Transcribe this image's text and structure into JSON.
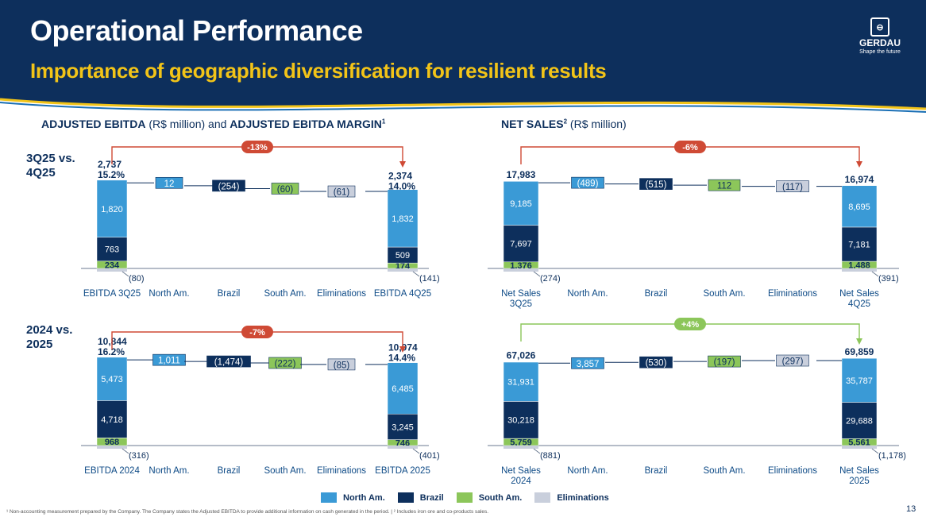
{
  "header": {
    "title": "Operational Performance",
    "subtitle": "Importance of geographic diversification for resilient results",
    "logo_name": "GERDAU",
    "logo_tagline": "Shape the future"
  },
  "sections": {
    "ebitda_title_bold1": "ADJUSTED EBITDA",
    "ebitda_title_unit": " (R$ million) ",
    "ebitda_title_and": "and ",
    "ebitda_title_bold2": "ADJUSTED EBITDA MARGIN",
    "ebitda_title_sup": "1",
    "sales_title_bold": "NET SALES",
    "sales_title_sup": "2",
    "sales_title_unit": " (R$ million)"
  },
  "rows": {
    "row1_label": "3Q25 vs.\n4Q25",
    "row2_label": "2024 vs.\n2025"
  },
  "colors": {
    "north_am": "#3a9ad6",
    "brazil": "#0d2f5c",
    "south_am": "#8cc65a",
    "eliminations": "#c9cfdc",
    "negative_badge": "#cf4a35",
    "positive_badge": "#8cc65a",
    "navy": "#0d2f5c"
  },
  "legend": [
    {
      "label": "North Am.",
      "color": "#3a9ad6"
    },
    {
      "label": "Brazil",
      "color": "#0d2f5c"
    },
    {
      "label": "South Am.",
      "color": "#8cc65a"
    },
    {
      "label": "Eliminations",
      "color": "#c9cfdc"
    }
  ],
  "chart_data": [
    {
      "type": "waterfall",
      "id": "ebitda_q",
      "title": "ADJUSTED EBITDA (R$ million) and ADJUSTED EBITDA MARGIN — 3Q25 vs. 4Q25",
      "categories": [
        "EBITDA 3Q25",
        "North Am.",
        "Brazil",
        "South Am.",
        "Eliminations",
        "EBITDA 4Q25"
      ],
      "start": {
        "total": 2737,
        "margin": "15.2%",
        "north_am": 1820,
        "brazil": 763,
        "south_am": 234,
        "eliminations": -80
      },
      "steps": [
        {
          "category": "North Am.",
          "value": 12,
          "label": "12",
          "series": "north_am"
        },
        {
          "category": "Brazil",
          "value": -254,
          "label": "(254)",
          "series": "brazil"
        },
        {
          "category": "South Am.",
          "value": -60,
          "label": "(60)",
          "series": "south_am"
        },
        {
          "category": "Eliminations",
          "value": -61,
          "label": "(61)",
          "series": "eliminations"
        }
      ],
      "end": {
        "total": 2374,
        "margin": "14.0%",
        "north_am": 1832,
        "brazil": 509,
        "south_am": 174,
        "eliminations": -141
      },
      "start_labels": {
        "total": "2,737",
        "north_am": "1,820",
        "brazil": "763",
        "south_am": "234",
        "eliminations": "(80)"
      },
      "end_labels": {
        "total": "2,374",
        "north_am": "1,832",
        "brazil": "509",
        "south_am": "174",
        "eliminations": "(141)"
      },
      "change": "-13%",
      "change_sign": "neg"
    },
    {
      "type": "waterfall",
      "id": "ebitda_y",
      "title": "ADJUSTED EBITDA (R$ million) and ADJUSTED EBITDA MARGIN — 2024 vs. 2025",
      "categories": [
        "EBITDA 2024",
        "North Am.",
        "Brazil",
        "South Am.",
        "Eliminations",
        "EBITDA 2025"
      ],
      "start": {
        "total": 10844,
        "margin": "16.2%",
        "north_am": 5473,
        "brazil": 4718,
        "south_am": 968,
        "eliminations": -316
      },
      "steps": [
        {
          "category": "North Am.",
          "value": 1011,
          "label": "1,011",
          "series": "north_am"
        },
        {
          "category": "Brazil",
          "value": -1474,
          "label": "(1,474)",
          "series": "brazil"
        },
        {
          "category": "South Am.",
          "value": -222,
          "label": "(222)",
          "series": "south_am"
        },
        {
          "category": "Eliminations",
          "value": -85,
          "label": "(85)",
          "series": "eliminations"
        }
      ],
      "end": {
        "total": 10074,
        "margin": "14.4%",
        "north_am": 6485,
        "brazil": 3245,
        "south_am": 746,
        "eliminations": -401
      },
      "start_labels": {
        "total": "10,844",
        "north_am": "5,473",
        "brazil": "4,718",
        "south_am": "968",
        "eliminations": "(316)"
      },
      "end_labels": {
        "total": "10,074",
        "north_am": "6,485",
        "brazil": "3,245",
        "south_am": "746",
        "eliminations": "(401)"
      },
      "change": "-7%",
      "change_sign": "neg"
    },
    {
      "type": "waterfall",
      "id": "sales_q",
      "title": "NET SALES (R$ million) — 3Q25 vs. 4Q25",
      "categories": [
        "Net Sales 3Q25",
        "North Am.",
        "Brazil",
        "South Am.",
        "Eliminations",
        "Net Sales 4Q25"
      ],
      "start": {
        "total": 17983,
        "margin": "",
        "north_am": 9185,
        "brazil": 7697,
        "south_am": 1376,
        "eliminations": -274
      },
      "steps": [
        {
          "category": "North Am.",
          "value": -489,
          "label": "(489)",
          "series": "north_am"
        },
        {
          "category": "Brazil",
          "value": -515,
          "label": "(515)",
          "series": "brazil"
        },
        {
          "category": "South Am.",
          "value": 112,
          "label": "112",
          "series": "south_am"
        },
        {
          "category": "Eliminations",
          "value": -117,
          "label": "(117)",
          "series": "eliminations"
        }
      ],
      "end": {
        "total": 16974,
        "margin": "",
        "north_am": 8695,
        "brazil": 7181,
        "south_am": 1488,
        "eliminations": -391
      },
      "start_labels": {
        "total": "17,983",
        "north_am": "9,185",
        "brazil": "7,697",
        "south_am": "1,376",
        "eliminations": "(274)"
      },
      "end_labels": {
        "total": "16,974",
        "north_am": "8,695",
        "brazil": "7,181",
        "south_am": "1,488",
        "eliminations": "(391)"
      },
      "change": "-6%",
      "change_sign": "neg"
    },
    {
      "type": "waterfall",
      "id": "sales_y",
      "title": "NET SALES (R$ million) — 2024 vs. 2025",
      "categories": [
        "Net Sales 2024",
        "North Am.",
        "Brazil",
        "South Am.",
        "Eliminations",
        "Net Sales 2025"
      ],
      "start": {
        "total": 67026,
        "margin": "",
        "north_am": 31931,
        "brazil": 30218,
        "south_am": 5759,
        "eliminations": -881
      },
      "steps": [
        {
          "category": "North Am.",
          "value": 3857,
          "label": "3,857",
          "series": "north_am"
        },
        {
          "category": "Brazil",
          "value": -530,
          "label": "(530)",
          "series": "brazil"
        },
        {
          "category": "South Am.",
          "value": -197,
          "label": "(197)",
          "series": "south_am"
        },
        {
          "category": "Eliminations",
          "value": -297,
          "label": "(297)",
          "series": "eliminations"
        }
      ],
      "end": {
        "total": 69859,
        "margin": "",
        "north_am": 35787,
        "brazil": 29688,
        "south_am": 5561,
        "eliminations": -1178
      },
      "start_labels": {
        "total": "67,026",
        "north_am": "31,931",
        "brazil": "30,218",
        "south_am": "5,759",
        "eliminations": "(881)"
      },
      "end_labels": {
        "total": "69,859",
        "north_am": "35,787",
        "brazil": "29,688",
        "south_am": "5,561",
        "eliminations": "(1,178)"
      },
      "change": "+4%",
      "change_sign": "pos"
    }
  ],
  "footnote": "¹ Non-accounting measurement prepared by the Company. The Company states the Adjusted EBITDA to provide additional information on cash generated in the period. | ² Includes iron ore and co-products sales.",
  "page_number": "13"
}
